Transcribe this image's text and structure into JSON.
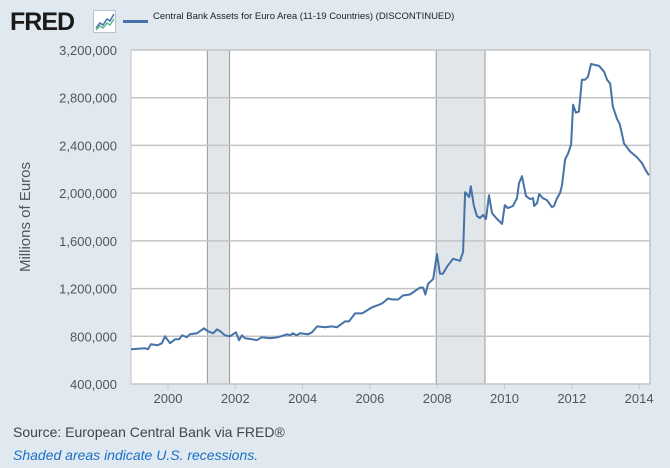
{
  "header": {
    "logo": "FRED",
    "logo_icon": "line-chart-icon"
  },
  "footer": {
    "source": "Source: European Central Bank via FRED®",
    "note": "Shaded areas indicate U.S. recessions."
  },
  "colors": {
    "series": "#4572a7",
    "recession": "#e1e6eb",
    "background": "#e1e9f0"
  },
  "chart_data": {
    "type": "line",
    "title": "",
    "legend": [
      "Central Bank Assets for Euro Area (11-19 Countries) (DISCONTINUED)"
    ],
    "legend_placement": "top-left",
    "xlabel": "",
    "ylabel": "Millions of Euros",
    "xlim": [
      1998.9,
      2014.3
    ],
    "ylim": [
      400000,
      3200000
    ],
    "x_ticks": [
      2000,
      2002,
      2004,
      2006,
      2008,
      2010,
      2012,
      2014
    ],
    "x_tick_labels": [
      "2000",
      "2002",
      "2004",
      "2006",
      "2008",
      "2010",
      "2012",
      "2014"
    ],
    "y_ticks": [
      400000,
      800000,
      1200000,
      1600000,
      2000000,
      2400000,
      2800000,
      3200000
    ],
    "y_tick_labels": [
      "400,000",
      "800,000",
      "1,200,000",
      "1,600,000",
      "2,000,000",
      "2,400,000",
      "2,800,000",
      "3,200,000"
    ],
    "grid": true,
    "recessions": [
      [
        2001.17,
        2001.83
      ],
      [
        2007.97,
        2009.42
      ]
    ],
    "series": [
      {
        "name": "Central Bank Assets for Euro Area (11-19 Countries) (DISCONTINUED)",
        "x": [
          1998.9,
          1999.32,
          1999.41,
          1999.49,
          1999.7,
          1999.82,
          1999.91,
          2000.06,
          2000.21,
          2000.33,
          2000.42,
          2000.56,
          2000.65,
          2000.86,
          2001.07,
          2001.19,
          2001.34,
          2001.46,
          2001.55,
          2001.69,
          2001.84,
          2002.02,
          2002.11,
          2002.2,
          2002.29,
          2002.5,
          2002.64,
          2002.79,
          2003.03,
          2003.27,
          2003.54,
          2003.63,
          2003.71,
          2003.83,
          2003.92,
          2004.16,
          2004.28,
          2004.43,
          2004.67,
          2004.87,
          2005.02,
          2005.26,
          2005.38,
          2005.56,
          2005.77,
          2006.06,
          2006.36,
          2006.54,
          2006.66,
          2006.84,
          2006.98,
          2007.19,
          2007.49,
          2007.58,
          2007.65,
          2007.73,
          2007.88,
          2007.99,
          2008.08,
          2008.17,
          2008.29,
          2008.47,
          2008.68,
          2008.77,
          2008.83,
          2008.95,
          2009.0,
          2009.09,
          2009.18,
          2009.27,
          2009.36,
          2009.45,
          2009.54,
          2009.63,
          2009.78,
          2009.93,
          2010.01,
          2010.1,
          2010.25,
          2010.37,
          2010.43,
          2010.52,
          2010.64,
          2010.76,
          2010.85,
          2010.88,
          2010.97,
          2011.03,
          2011.14,
          2011.26,
          2011.41,
          2011.47,
          2011.56,
          2011.65,
          2011.71,
          2011.8,
          2011.89,
          2011.98,
          2012.04,
          2012.12,
          2012.21,
          2012.3,
          2012.39,
          2012.48,
          2012.57,
          2012.81,
          2012.96,
          2013.05,
          2013.14,
          2013.22,
          2013.34,
          2013.43,
          2013.55,
          2013.73,
          2013.94,
          2014.09,
          2014.18,
          2014.29
        ],
        "y": [
          692000,
          700000,
          692000,
          733000,
          725000,
          742000,
          800000,
          742000,
          775000,
          775000,
          808000,
          792000,
          817000,
          825000,
          867000,
          842000,
          825000,
          858000,
          842000,
          808000,
          800000,
          833000,
          767000,
          808000,
          783000,
          775000,
          767000,
          792000,
          783000,
          792000,
          817000,
          808000,
          825000,
          808000,
          825000,
          817000,
          833000,
          883000,
          875000,
          883000,
          875000,
          925000,
          925000,
          992000,
          992000,
          1042000,
          1075000,
          1117000,
          1108000,
          1108000,
          1142000,
          1150000,
          1208000,
          1208000,
          1150000,
          1240000,
          1280000,
          1490000,
          1325000,
          1325000,
          1383000,
          1450000,
          1433000,
          1508000,
          2008000,
          1967000,
          2058000,
          1892000,
          1808000,
          1792000,
          1817000,
          1783000,
          1983000,
          1833000,
          1783000,
          1742000,
          1900000,
          1875000,
          1892000,
          1958000,
          2083000,
          2142000,
          1975000,
          1950000,
          1958000,
          1892000,
          1917000,
          1992000,
          1958000,
          1942000,
          1883000,
          1892000,
          1958000,
          2000000,
          2067000,
          2283000,
          2333000,
          2408000,
          2742000,
          2675000,
          2683000,
          2950000,
          2950000,
          2975000,
          3083000,
          3067000,
          3017000,
          2950000,
          2917000,
          2725000,
          2625000,
          2575000,
          2417000,
          2350000,
          2300000,
          2250000,
          2200000,
          2150000
        ]
      }
    ]
  }
}
